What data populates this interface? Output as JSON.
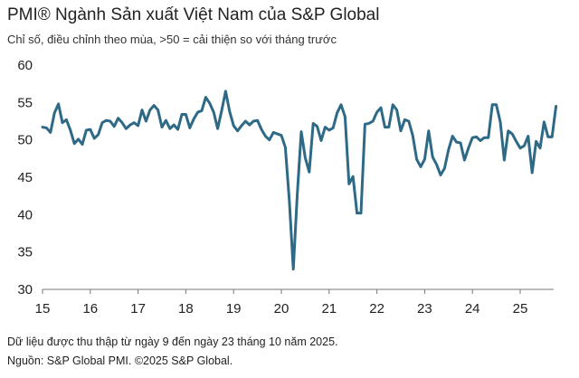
{
  "chart_data": {
    "type": "line",
    "title": "PMI® Ngành Sản xuất Việt Nam của S&P Global",
    "subtitle": "Chỉ số, điều chỉnh theo mùa, >50 = cải thiện so với tháng trước",
    "xlabel": "",
    "ylabel": "",
    "ylim": [
      30,
      60
    ],
    "y_ticks": [
      "60",
      "55",
      "50",
      "45",
      "40",
      "35",
      "30"
    ],
    "x_ticks": [
      "15",
      "16",
      "17",
      "18",
      "19",
      "20",
      "21",
      "22",
      "23",
      "24",
      "25"
    ],
    "grid": "none",
    "line_color": "#2e6a86",
    "series": [
      {
        "x_start": "2015-01",
        "frequency": "monthly",
        "values": [
          51.7,
          51.6,
          51.0,
          53.6,
          54.8,
          52.3,
          52.7,
          51.3,
          49.5,
          50.1,
          49.4,
          51.3,
          51.4,
          50.2,
          50.7,
          52.3,
          52.6,
          52.5,
          51.8,
          52.9,
          52.3,
          51.5,
          52.0,
          52.3,
          51.9,
          54.0,
          52.5,
          54.0,
          54.6,
          54.0,
          51.7,
          52.6,
          51.5,
          52.0,
          51.4,
          53.4,
          53.4,
          51.6,
          52.8,
          53.7,
          53.9,
          55.7,
          54.9,
          53.7,
          51.5,
          53.9,
          56.5,
          53.8,
          51.9,
          51.2,
          51.9,
          52.5,
          52.0,
          52.5,
          52.6,
          51.4,
          50.5,
          50.0,
          51.0,
          50.8,
          50.6,
          49.0,
          41.9,
          32.7,
          42.7,
          51.1,
          47.6,
          45.7,
          52.2,
          51.8,
          49.9,
          51.7,
          51.3,
          51.6,
          53.6,
          54.7,
          53.1,
          44.1,
          45.1,
          40.2,
          40.2,
          52.1,
          52.2,
          52.5,
          53.7,
          54.3,
          51.7,
          51.7,
          54.7,
          54.0,
          51.2,
          52.7,
          52.5,
          50.6,
          47.4,
          46.4,
          47.4,
          51.2,
          47.7,
          46.7,
          45.3,
          46.2,
          48.7,
          50.5,
          49.7,
          49.6,
          47.3,
          48.9,
          50.3,
          50.4,
          49.9,
          50.3,
          50.3,
          54.7,
          54.7,
          52.4,
          47.3,
          51.2,
          50.8,
          49.8,
          48.9,
          49.2,
          50.5,
          45.6,
          49.8,
          48.9,
          52.4,
          50.4,
          50.4,
          54.5
        ]
      }
    ]
  },
  "notes": {
    "collection": "Dữ liệu được thu thập từ ngày 9 đến ngày 23 tháng 10 năm 2025.",
    "source": "Nguồn: S&P Global PMI. ©2025 S&P Global."
  }
}
